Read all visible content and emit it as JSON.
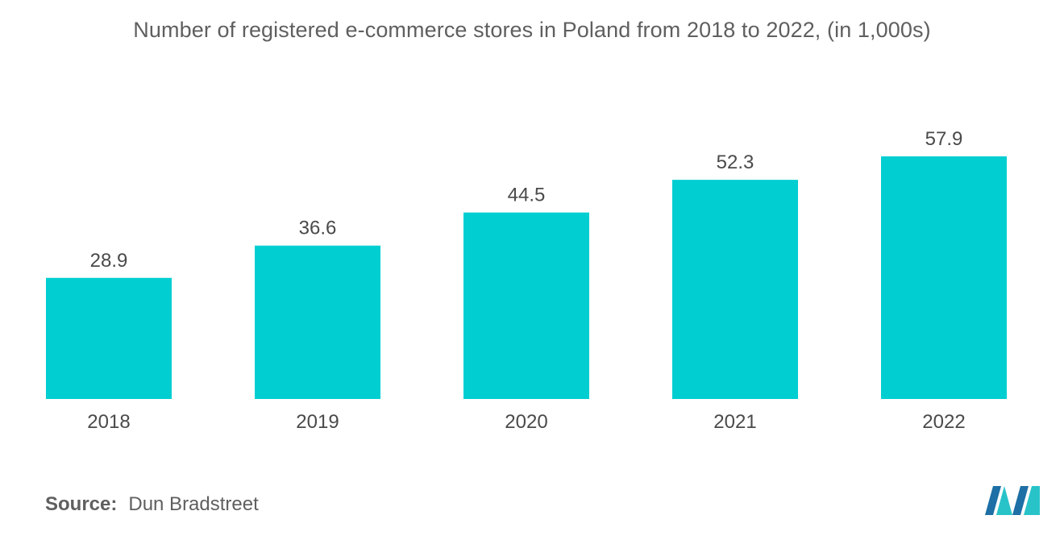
{
  "chart_data": {
    "type": "bar",
    "title": "Number of registered e-commerce stores in Poland from 2018 to 2022, (in 1,000s)",
    "categories": [
      "2018",
      "2019",
      "2020",
      "2021",
      "2022"
    ],
    "values": [
      28.9,
      36.6,
      44.5,
      52.3,
      57.9
    ],
    "value_labels": [
      "28.9",
      "36.6",
      "44.5",
      "52.3",
      "57.9"
    ],
    "xlabel": "",
    "ylabel": "",
    "ylim": [
      0,
      57.9
    ],
    "grid": false,
    "legend": "none",
    "bar_color": "#00CED1"
  },
  "source": {
    "label": "Source:",
    "value": "Dun Bradstreet"
  },
  "logo": {
    "icon": "mordor-intelligence-logo-icon",
    "colors": [
      "#1d6fa5",
      "#28c3c8"
    ]
  }
}
